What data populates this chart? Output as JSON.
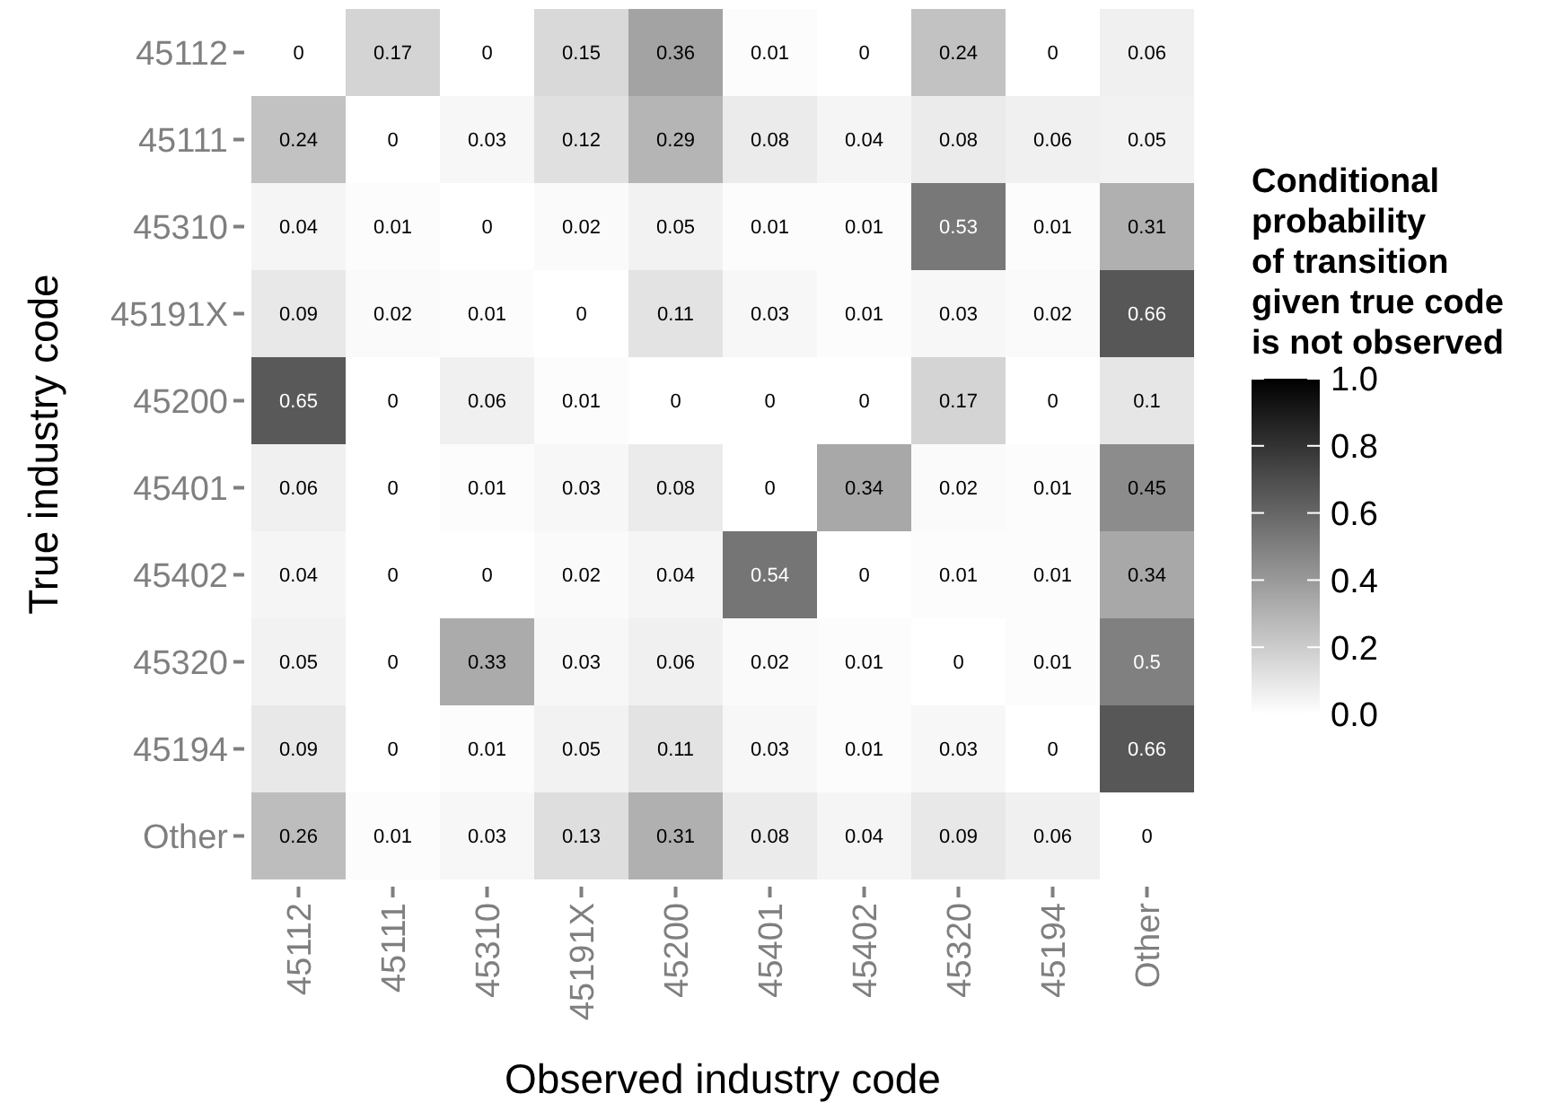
{
  "chart_data": {
    "type": "heatmap",
    "xlabel": "Observed industry code",
    "ylabel": "True industry code",
    "legend_title": "Conditional\nprobability\nof transition\ngiven true code\nis not observed",
    "categories": [
      "45112",
      "45111",
      "45310",
      "45191X",
      "45200",
      "45401",
      "45402",
      "45320",
      "45194",
      "Other"
    ],
    "y_categories": [
      "45112",
      "45111",
      "45310",
      "45191X",
      "45200",
      "45401",
      "45402",
      "45320",
      "45194",
      "Other"
    ],
    "cells": [
      [
        0,
        0.17,
        0,
        0.15,
        0.36,
        0.01,
        0,
        0.24,
        0,
        0.06
      ],
      [
        0.24,
        0,
        0.03,
        0.12,
        0.29,
        0.08,
        0.04,
        0.08,
        0.06,
        0.05
      ],
      [
        0.04,
        0.01,
        0,
        0.02,
        0.05,
        0.01,
        0.01,
        0.53,
        0.01,
        0.31
      ],
      [
        0.09,
        0.02,
        0.01,
        0,
        0.11,
        0.03,
        0.01,
        0.03,
        0.02,
        0.66
      ],
      [
        0.65,
        0,
        0.06,
        0.01,
        0,
        0,
        0,
        0.17,
        0,
        0.1
      ],
      [
        0.06,
        0,
        0.01,
        0.03,
        0.08,
        0,
        0.34,
        0.02,
        0.01,
        0.45
      ],
      [
        0.04,
        0,
        0,
        0.02,
        0.04,
        0.54,
        0,
        0.01,
        0.01,
        0.34
      ],
      [
        0.05,
        0,
        0.33,
        0.03,
        0.06,
        0.02,
        0.01,
        0,
        0.01,
        0.5
      ],
      [
        0.09,
        0,
        0.01,
        0.05,
        0.11,
        0.03,
        0.01,
        0.03,
        0,
        0.66
      ],
      [
        0.26,
        0.01,
        0.03,
        0.13,
        0.31,
        0.08,
        0.04,
        0.09,
        0.06,
        0
      ]
    ],
    "clim": [
      0,
      1
    ],
    "cticks": [
      {
        "value": 0,
        "label": "0.0"
      },
      {
        "value": 0.2,
        "label": "0.2"
      },
      {
        "value": 0.4,
        "label": "0.4"
      },
      {
        "value": 0.6,
        "label": "0.6"
      },
      {
        "value": 0.8,
        "label": "0.8"
      },
      {
        "value": 1,
        "label": "1.0"
      }
    ],
    "data_labels": true
  }
}
